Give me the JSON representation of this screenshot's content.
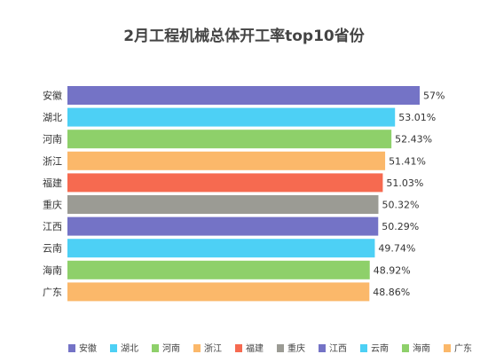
{
  "chart_data": {
    "type": "bar",
    "orientation": "horizontal",
    "title": "2月工程机械总体开工率top10省份",
    "xlabel": "",
    "ylabel": "",
    "xlim": [
      0,
      60
    ],
    "grid": false,
    "legend_position": "bottom",
    "categories": [
      "安徽",
      "湖北",
      "河南",
      "浙江",
      "福建",
      "重庆",
      "江西",
      "云南",
      "海南",
      "广东"
    ],
    "values": [
      57,
      53.01,
      52.43,
      51.41,
      51.03,
      50.32,
      50.29,
      49.74,
      48.92,
      48.86
    ],
    "value_labels": [
      "57%",
      "53.01%",
      "52.43%",
      "51.41%",
      "51.03%",
      "50.32%",
      "50.29%",
      "49.74%",
      "48.92%",
      "48.86%"
    ],
    "colors": [
      "#7473c6",
      "#4dd0f5",
      "#8ed06a",
      "#fbb86a",
      "#f66a50",
      "#9b9b94",
      "#7473c6",
      "#4dd0f5",
      "#8ed06a",
      "#fbb86a"
    ]
  }
}
